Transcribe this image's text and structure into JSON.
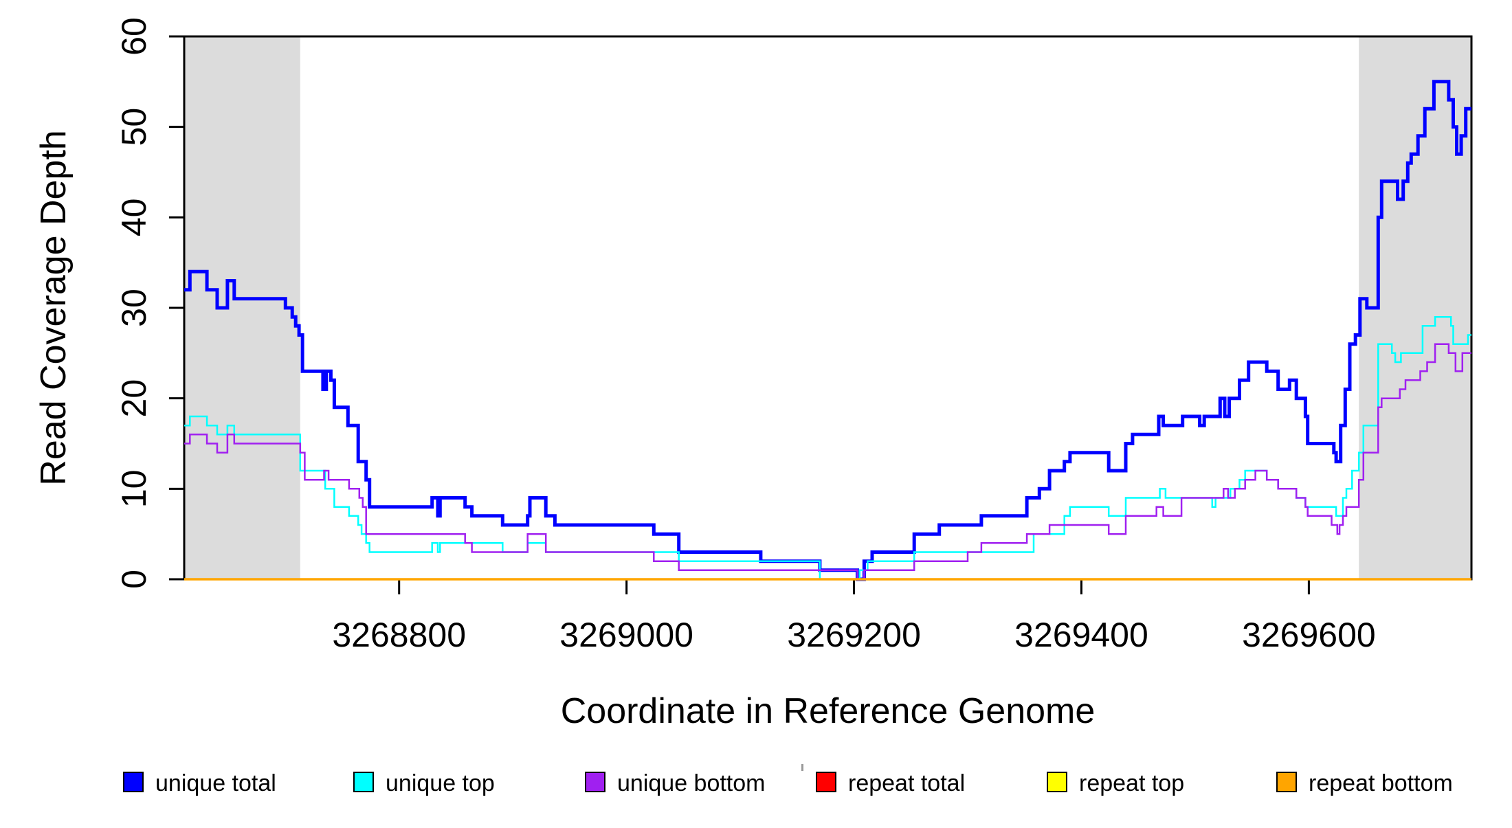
{
  "chart_data": {
    "type": "line",
    "subtype": "step-after",
    "title": "",
    "xlabel": "Coordinate in Reference Genome",
    "ylabel": "Read Coverage Depth",
    "xlim": [
      3268611,
      3269743
    ],
    "ylim": [
      0,
      60
    ],
    "xticks": [
      3268800,
      3269000,
      3269200,
      3269400,
      3269600
    ],
    "xtick_labels": [
      "3268800",
      "3269000",
      "3269200",
      "3269400",
      "3269600"
    ],
    "yticks": [
      0,
      10,
      20,
      30,
      40,
      50,
      60
    ],
    "ytick_labels": [
      "0",
      "10",
      "20",
      "30",
      "40",
      "50",
      "60"
    ],
    "grid": false,
    "legend_position": "bottom",
    "colors": {
      "unique_total": "#0000ff",
      "unique_top": "#00ffff",
      "unique_bottom": "#a020f0",
      "repeat_total": "#ff0000",
      "repeat_top": "#ffff00",
      "repeat_bottom": "#ffa500",
      "shaded_region": "#dcdcdc",
      "axis": "#000000"
    },
    "shaded_regions": [
      {
        "name": "left-repeat-region",
        "x0": 3268611,
        "x1": 3268713
      },
      {
        "name": "right-repeat-region",
        "x0": 3269644,
        "x1": 3269743
      }
    ],
    "series": [
      {
        "name": "unique total",
        "color": "#0000ff",
        "width": 5,
        "steps": [
          [
            3268611,
            32
          ],
          [
            3268616,
            34
          ],
          [
            3268631,
            32
          ],
          [
            3268640,
            30
          ],
          [
            3268649,
            33
          ],
          [
            3268655,
            31
          ],
          [
            3268700,
            30
          ],
          [
            3268706,
            29
          ],
          [
            3268709,
            28
          ],
          [
            3268712,
            27
          ],
          [
            3268715,
            23
          ],
          [
            3268733,
            21
          ],
          [
            3268736,
            23
          ],
          [
            3268740,
            22
          ],
          [
            3268743,
            19
          ],
          [
            3268755,
            17
          ],
          [
            3268764,
            13
          ],
          [
            3268771,
            11
          ],
          [
            3268774,
            8
          ],
          [
            3268829,
            9
          ],
          [
            3268834,
            7
          ],
          [
            3268836,
            9
          ],
          [
            3268858,
            8
          ],
          [
            3268864,
            7
          ],
          [
            3268891,
            6
          ],
          [
            3268913,
            7
          ],
          [
            3268915,
            9
          ],
          [
            3268929,
            7
          ],
          [
            3268937,
            6
          ],
          [
            3269024,
            5
          ],
          [
            3269046,
            3
          ],
          [
            3269118,
            2
          ],
          [
            3269170,
            1
          ],
          [
            3269203,
            0
          ],
          [
            3269209,
            2
          ],
          [
            3269216,
            3
          ],
          [
            3269253,
            5
          ],
          [
            3269275,
            6
          ],
          [
            3269312,
            7
          ],
          [
            3269352,
            9
          ],
          [
            3269363,
            10
          ],
          [
            3269372,
            12
          ],
          [
            3269385,
            13
          ],
          [
            3269390,
            14
          ],
          [
            3269424,
            12
          ],
          [
            3269439,
            15
          ],
          [
            3269445,
            16
          ],
          [
            3269468,
            18
          ],
          [
            3269472,
            17
          ],
          [
            3269489,
            18
          ],
          [
            3269504,
            17
          ],
          [
            3269508,
            18
          ],
          [
            3269522,
            20
          ],
          [
            3269526,
            18
          ],
          [
            3269530,
            20
          ],
          [
            3269539,
            22
          ],
          [
            3269547,
            24
          ],
          [
            3269563,
            23
          ],
          [
            3269573,
            21
          ],
          [
            3269583,
            22
          ],
          [
            3269589,
            20
          ],
          [
            3269597,
            18
          ],
          [
            3269599,
            15
          ],
          [
            3269622,
            14
          ],
          [
            3269624,
            13
          ],
          [
            3269628,
            17
          ],
          [
            3269632,
            21
          ],
          [
            3269636,
            26
          ],
          [
            3269641,
            27
          ],
          [
            3269645,
            31
          ],
          [
            3269651,
            30
          ],
          [
            3269661,
            40
          ],
          [
            3269664,
            44
          ],
          [
            3269678,
            42
          ],
          [
            3269683,
            44
          ],
          [
            3269687,
            46
          ],
          [
            3269690,
            47
          ],
          [
            3269696,
            49
          ],
          [
            3269702,
            52
          ],
          [
            3269710,
            55
          ],
          [
            3269723,
            53
          ],
          [
            3269727,
            50
          ],
          [
            3269730,
            47
          ],
          [
            3269734,
            49
          ],
          [
            3269738,
            52
          ]
        ]
      },
      {
        "name": "unique top",
        "color": "#00ffff",
        "width": 2.5,
        "steps": [
          [
            3268611,
            17
          ],
          [
            3268616,
            18
          ],
          [
            3268631,
            17
          ],
          [
            3268640,
            16
          ],
          [
            3268649,
            17
          ],
          [
            3268655,
            16
          ],
          [
            3268713,
            12
          ],
          [
            3268735,
            10
          ],
          [
            3268743,
            8
          ],
          [
            3268756,
            7
          ],
          [
            3268764,
            6
          ],
          [
            3268767,
            5
          ],
          [
            3268771,
            4
          ],
          [
            3268774,
            3
          ],
          [
            3268829,
            4
          ],
          [
            3268834,
            3
          ],
          [
            3268836,
            4
          ],
          [
            3268891,
            3
          ],
          [
            3268913,
            4
          ],
          [
            3268929,
            3
          ],
          [
            3269046,
            2
          ],
          [
            3269170,
            0
          ],
          [
            3269205,
            1
          ],
          [
            3269212,
            2
          ],
          [
            3269253,
            3
          ],
          [
            3269358,
            5
          ],
          [
            3269385,
            7
          ],
          [
            3269390,
            8
          ],
          [
            3269424,
            7
          ],
          [
            3269439,
            9
          ],
          [
            3269469,
            10
          ],
          [
            3269474,
            9
          ],
          [
            3269515,
            8
          ],
          [
            3269518,
            9
          ],
          [
            3269531,
            10
          ],
          [
            3269539,
            11
          ],
          [
            3269544,
            12
          ],
          [
            3269563,
            11
          ],
          [
            3269573,
            10
          ],
          [
            3269589,
            9
          ],
          [
            3269597,
            8
          ],
          [
            3269624,
            7
          ],
          [
            3269630,
            9
          ],
          [
            3269633,
            10
          ],
          [
            3269638,
            12
          ],
          [
            3269644,
            14
          ],
          [
            3269648,
            17
          ],
          [
            3269661,
            26
          ],
          [
            3269673,
            25
          ],
          [
            3269676,
            24
          ],
          [
            3269681,
            25
          ],
          [
            3269700,
            28
          ],
          [
            3269711,
            29
          ],
          [
            3269725,
            28
          ],
          [
            3269727,
            26
          ],
          [
            3269740,
            27
          ]
        ]
      },
      {
        "name": "unique bottom",
        "color": "#a020f0",
        "width": 2.5,
        "steps": [
          [
            3268611,
            15
          ],
          [
            3268616,
            16
          ],
          [
            3268631,
            15
          ],
          [
            3268640,
            14
          ],
          [
            3268649,
            16
          ],
          [
            3268655,
            15
          ],
          [
            3268713,
            14
          ],
          [
            3268717,
            11
          ],
          [
            3268734,
            12
          ],
          [
            3268738,
            11
          ],
          [
            3268756,
            10
          ],
          [
            3268765,
            9
          ],
          [
            3268768,
            8
          ],
          [
            3268771,
            5
          ],
          [
            3268858,
            4
          ],
          [
            3268864,
            3
          ],
          [
            3268913,
            5
          ],
          [
            3268929,
            3
          ],
          [
            3269024,
            2
          ],
          [
            3269046,
            1
          ],
          [
            3269203,
            0
          ],
          [
            3269209,
            1
          ],
          [
            3269253,
            2
          ],
          [
            3269300,
            3
          ],
          [
            3269312,
            4
          ],
          [
            3269352,
            5
          ],
          [
            3269372,
            6
          ],
          [
            3269424,
            5
          ],
          [
            3269439,
            7
          ],
          [
            3269466,
            8
          ],
          [
            3269472,
            7
          ],
          [
            3269488,
            9
          ],
          [
            3269525,
            10
          ],
          [
            3269529,
            9
          ],
          [
            3269535,
            10
          ],
          [
            3269544,
            11
          ],
          [
            3269553,
            12
          ],
          [
            3269563,
            11
          ],
          [
            3269573,
            10
          ],
          [
            3269589,
            9
          ],
          [
            3269597,
            8
          ],
          [
            3269599,
            7
          ],
          [
            3269620,
            6
          ],
          [
            3269625,
            5
          ],
          [
            3269627,
            6
          ],
          [
            3269630,
            7
          ],
          [
            3269633,
            8
          ],
          [
            3269644,
            11
          ],
          [
            3269648,
            14
          ],
          [
            3269661,
            19
          ],
          [
            3269664,
            20
          ],
          [
            3269680,
            21
          ],
          [
            3269685,
            22
          ],
          [
            3269698,
            23
          ],
          [
            3269704,
            24
          ],
          [
            3269711,
            26
          ],
          [
            3269723,
            25
          ],
          [
            3269729,
            23
          ],
          [
            3269735,
            25
          ]
        ]
      },
      {
        "name": "repeat total",
        "color": "#ff0000",
        "width": 3,
        "steps": [
          [
            3268611,
            0
          ]
        ]
      },
      {
        "name": "repeat top",
        "color": "#ffff00",
        "width": 3,
        "steps": [
          [
            3268611,
            0
          ]
        ]
      },
      {
        "name": "repeat bottom",
        "color": "#ffa500",
        "width": 3.5,
        "steps": [
          [
            3268611,
            0
          ]
        ]
      }
    ],
    "legend": [
      {
        "label": "unique total",
        "color": "#0000ff"
      },
      {
        "label": "unique top",
        "color": "#00ffff"
      },
      {
        "label": "unique bottom",
        "color": "#a020f0"
      },
      {
        "label": "repeat total",
        "color": "#ff0000"
      },
      {
        "label": "repeat top",
        "color": "#ffff00"
      },
      {
        "label": "repeat bottom",
        "color": "#ffa500"
      }
    ]
  }
}
